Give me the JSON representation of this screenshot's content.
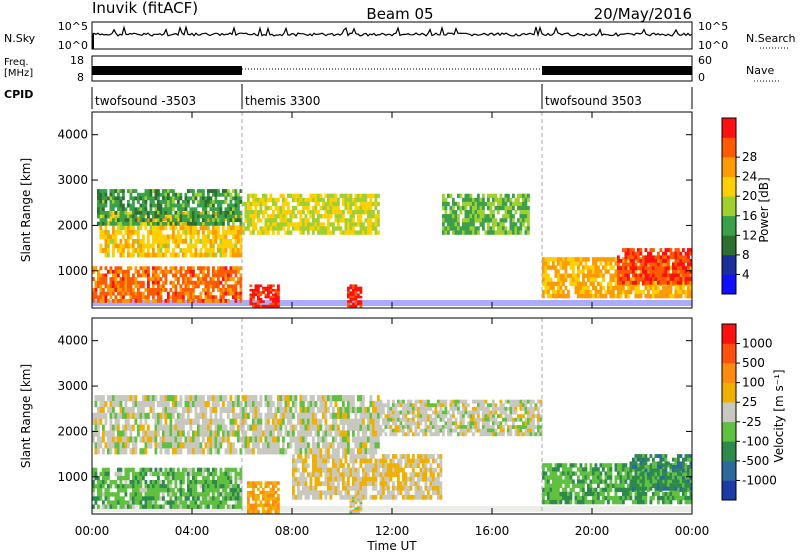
{
  "header": {
    "station": "Inuvik (fitACF)",
    "beam": "Beam 05",
    "date": "20/May/2016"
  },
  "top_panels": {
    "nsky_label": "N.Sky",
    "nsky_ticks": [
      "10^5",
      "10^0"
    ],
    "nsearch_label": "N.Search",
    "nsearch_ticks": [
      "10^5",
      "10^0"
    ],
    "freq_label": "Freq.",
    "freq_unit": "[MHz]",
    "freq_ticks": [
      "18",
      "8"
    ],
    "nave_label": "Nave",
    "nave_ticks": [
      "60",
      "0"
    ],
    "cpid_label": "CPID"
  },
  "cpid_segments": [
    {
      "label": "twofsound -3503",
      "start_hour": 0,
      "end_hour": 6
    },
    {
      "label": "themis 3300",
      "start_hour": 6,
      "end_hour": 18
    },
    {
      "label": "twofsound 3503",
      "start_hour": 18,
      "end_hour": 24
    }
  ],
  "axes": {
    "xlabel": "Time UT",
    "x_ticks": [
      "00:00",
      "04:00",
      "08:00",
      "12:00",
      "16:00",
      "20:00",
      "00:00"
    ],
    "ylabel": "Slant Range [km]",
    "y_ticks": [
      "1000",
      "2000",
      "3000",
      "4000"
    ]
  },
  "power_scale": {
    "label": "Power [dB]",
    "ticks": [
      "4",
      "8",
      "12",
      "16",
      "20",
      "24",
      "28"
    ],
    "colors": [
      "#1010ff",
      "#1a2f9c",
      "#2e6e2e",
      "#3aa04a",
      "#a0d030",
      "#ffd000",
      "#ff9a00",
      "#ff5a00",
      "#ff1010"
    ]
  },
  "velocity_scale": {
    "label": "Velocity [m s⁻¹]",
    "ticks": [
      "1000",
      "500",
      "100",
      "25",
      "-25",
      "-100",
      "-500",
      "-1000"
    ],
    "colors": [
      "#1c3aa8",
      "#2c6a9c",
      "#2e8a4c",
      "#60c040",
      "#c8c8c0",
      "#f0b000",
      "#ff8a10",
      "#ff5010",
      "#ff1010"
    ]
  },
  "chart_data": [
    {
      "type": "heatmap",
      "name": "Power",
      "x_range_hours": [
        0,
        24
      ],
      "y_range_km": [
        180,
        4500
      ],
      "colorbar_range_db": [
        0,
        32
      ],
      "regions": [
        {
          "t0": 0.0,
          "t1": 6.0,
          "r0": 300,
          "r1": 1100,
          "value": 26
        },
        {
          "t0": 0.3,
          "t1": 6.0,
          "r0": 1300,
          "r1": 2300,
          "value": 20
        },
        {
          "t0": 0.2,
          "t1": 6.0,
          "r0": 2000,
          "r1": 2800,
          "value": 12
        },
        {
          "t0": 6.0,
          "t1": 11.5,
          "r0": 1800,
          "r1": 2700,
          "value": 18
        },
        {
          "t0": 6.3,
          "t1": 7.5,
          "r0": 200,
          "r1": 700,
          "value": 30
        },
        {
          "t0": 10.2,
          "t1": 10.8,
          "r0": 200,
          "r1": 700,
          "value": 30
        },
        {
          "t0": 14.0,
          "t1": 17.5,
          "r0": 1800,
          "r1": 2700,
          "value": 14
        },
        {
          "t0": 18.0,
          "t1": 24.0,
          "r0": 400,
          "r1": 1300,
          "value": 22
        },
        {
          "t0": 21.0,
          "t1": 24.0,
          "r0": 700,
          "r1": 1500,
          "value": 28
        }
      ]
    },
    {
      "type": "heatmap",
      "name": "Velocity",
      "x_range_hours": [
        0,
        24
      ],
      "y_range_km": [
        180,
        4500
      ],
      "colorbar_range_ms": [
        -1000,
        1000
      ],
      "regions": [
        {
          "t0": 0.0,
          "t1": 6.0,
          "r0": 300,
          "r1": 1200,
          "value": -250
        },
        {
          "t0": 0.0,
          "t1": 11.5,
          "r0": 1500,
          "r1": 2800,
          "value": 0
        },
        {
          "t0": 6.2,
          "t1": 7.5,
          "r0": 200,
          "r1": 900,
          "value": 300
        },
        {
          "t0": 8.0,
          "t1": 14.0,
          "r0": 500,
          "r1": 1500,
          "value": 120
        },
        {
          "t0": 10.3,
          "t1": 10.8,
          "r0": 200,
          "r1": 600,
          "value": 0
        },
        {
          "t0": 11.5,
          "t1": 18.0,
          "r0": 1900,
          "r1": 2700,
          "value": 0
        },
        {
          "t0": 18.0,
          "t1": 24.0,
          "r0": 400,
          "r1": 1300,
          "value": -300
        },
        {
          "t0": 21.5,
          "t1": 24.0,
          "r0": 700,
          "r1": 1500,
          "value": -450
        }
      ]
    }
  ]
}
